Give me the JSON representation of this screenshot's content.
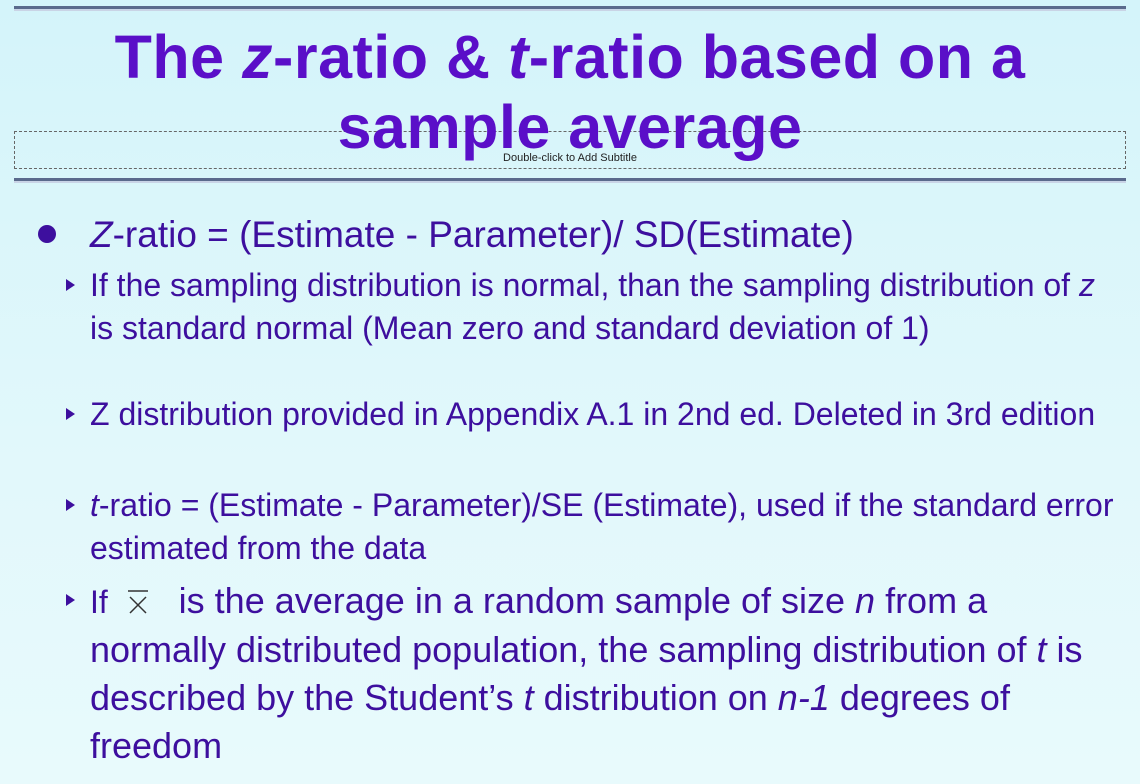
{
  "slide": {
    "title_parts": [
      "The ",
      "z",
      "-ratio & ",
      "t",
      "-ratio based on a",
      "sample average"
    ],
    "subtitle_placeholder": "Double-click to Add Subtitle",
    "bullet1": {
      "z": "Z",
      "rest": "-ratio = (Estimate - Parameter)/ SD(Estimate)"
    },
    "sub1": {
      "a": "If the sampling distribution is normal, than the sampling distribution of ",
      "z": "z",
      "b": " is standard normal (Mean zero and standard deviation of 1)"
    },
    "sub2": {
      "text": " Z distribution provided in Appendix A.1 in 2nd ed. Deleted in 3rd edition"
    },
    "sub3": {
      "t": " t",
      "rest": "-ratio = (Estimate - Parameter)/SE (Estimate), used if the standard error estimated from the data"
    },
    "sub4": {
      "a": "If ",
      "b": " is the average in a random sample of size ",
      "n": "n",
      "c": " from a normally distributed population, the sampling distribution of ",
      "t": "t",
      "d": " is described by the Student’s ",
      "t2": "t",
      "e": " distribution on ",
      "n1": "n-1",
      "f": " degrees of freedom"
    }
  }
}
